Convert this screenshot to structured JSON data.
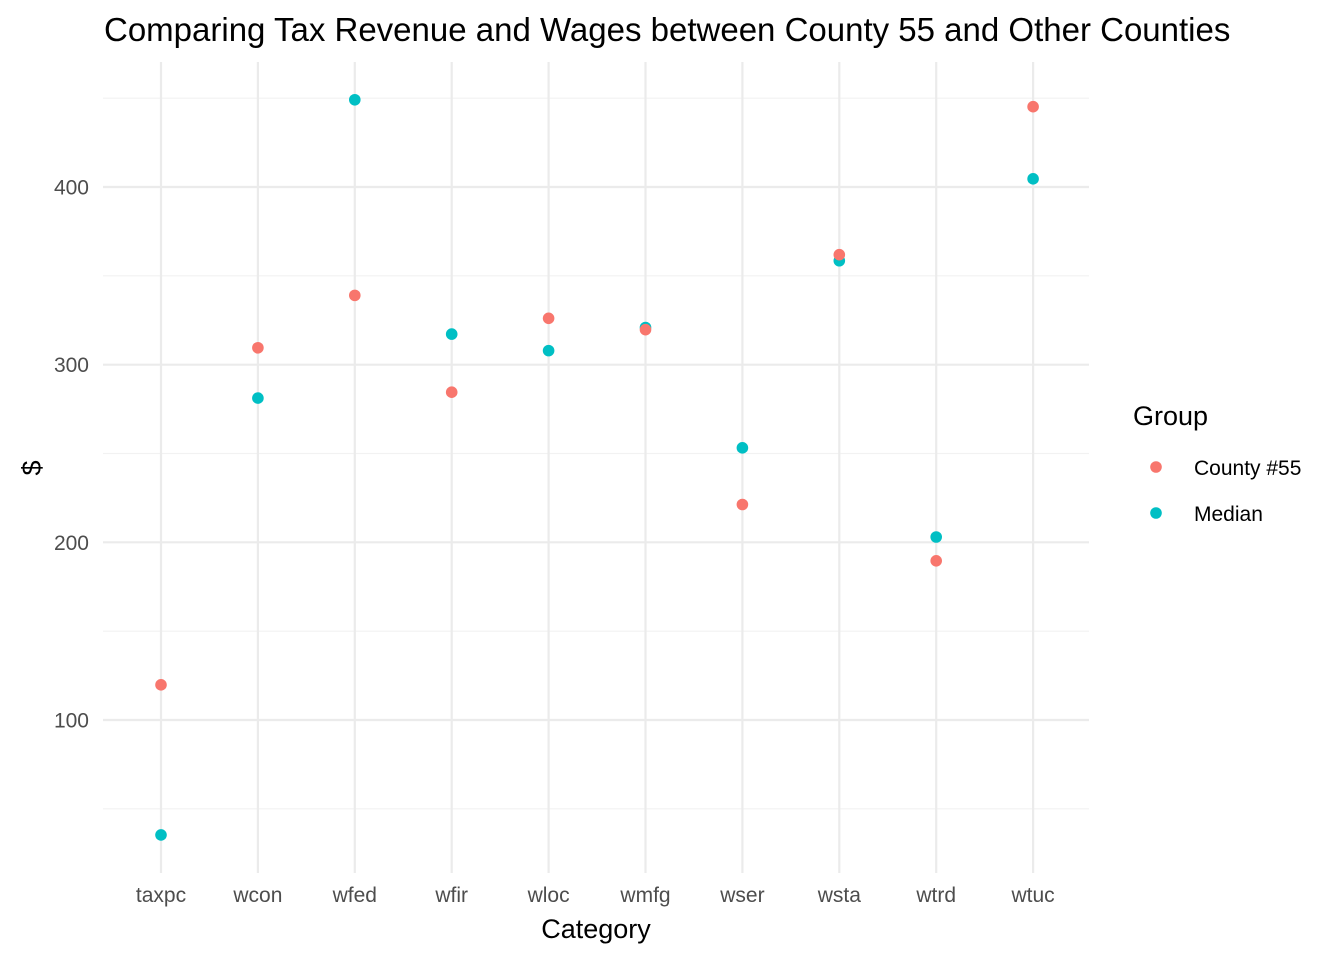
{
  "chart_data": {
    "type": "scatter",
    "title": "Comparing Tax Revenue and Wages between County 55 and Other Counties",
    "xlabel": "Category",
    "ylabel": "$",
    "categories": [
      "taxpc",
      "wcon",
      "wfed",
      "wfir",
      "wloc",
      "wmfg",
      "wser",
      "wsta",
      "wtrd",
      "wtuc"
    ],
    "ylim": [
      15,
      465
    ],
    "y_ticks": [
      100,
      200,
      300,
      400
    ],
    "y_minor_ticks": [
      50,
      150,
      250,
      350,
      450
    ],
    "grid": true,
    "legend": {
      "title": "Group",
      "placement": "right"
    },
    "series": [
      {
        "name": "County #55",
        "color": "#F8766D",
        "values": [
          119.8,
          309.5,
          339.0,
          284.5,
          326.1,
          319.7,
          221.3,
          361.9,
          189.6,
          445.2
        ]
      },
      {
        "name": "Median",
        "color": "#00BFC4",
        "values": [
          35.3,
          281.2,
          449.1,
          317.2,
          307.9,
          320.9,
          253.2,
          358.5,
          203.0,
          404.6
        ]
      }
    ]
  }
}
